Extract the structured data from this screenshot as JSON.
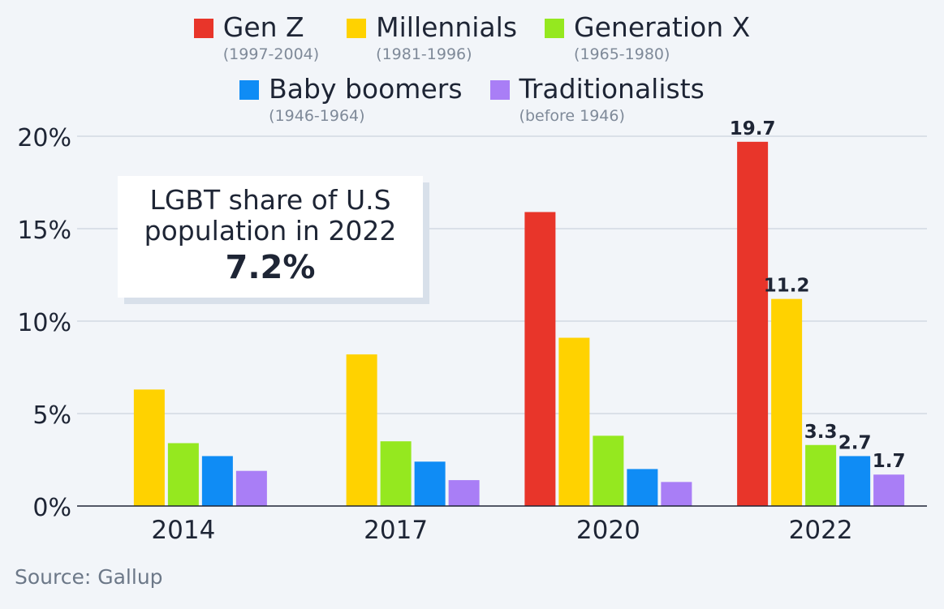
{
  "legend": [
    {
      "name": "Gen Z",
      "range": "(1997-2004)",
      "color": "#e8352a"
    },
    {
      "name": "Millennials",
      "range": "(1981-1996)",
      "color": "#ffd200"
    },
    {
      "name": "Generation X",
      "range": "(1965-1980)",
      "color": "#95e81f"
    },
    {
      "name": "Baby boomers",
      "range": "(1946-1964)",
      "color": "#0f8cf5"
    },
    {
      "name": "Traditionalists",
      "range": "(before 1946)",
      "color": "#a97ef6"
    }
  ],
  "callout": {
    "text_line1": "LGBT share of U.S",
    "text_line2": "population in 2022",
    "value": "7.2%"
  },
  "source": "Source: Gallup",
  "chart_data": {
    "type": "bar",
    "categories": [
      "2014",
      "2017",
      "2020",
      "2022"
    ],
    "series": [
      {
        "name": "Gen Z",
        "values": [
          null,
          null,
          15.9,
          19.7
        ],
        "labels": [
          null,
          null,
          null,
          "19.7"
        ]
      },
      {
        "name": "Millennials",
        "values": [
          6.3,
          8.2,
          9.1,
          11.2
        ],
        "labels": [
          null,
          null,
          null,
          "11.2"
        ]
      },
      {
        "name": "Generation X",
        "values": [
          3.4,
          3.5,
          3.8,
          3.3
        ],
        "labels": [
          null,
          null,
          null,
          "3.3"
        ]
      },
      {
        "name": "Baby boomers",
        "values": [
          2.7,
          2.4,
          2.0,
          2.7
        ],
        "labels": [
          null,
          null,
          null,
          "2.7"
        ]
      },
      {
        "name": "Traditionalists",
        "values": [
          1.9,
          1.4,
          1.3,
          1.7
        ],
        "labels": [
          null,
          null,
          null,
          "1.7"
        ]
      }
    ],
    "ylim": [
      0,
      20
    ],
    "yticks": [
      0,
      5,
      10,
      15,
      20
    ],
    "ytick_labels": [
      "0%",
      "5%",
      "10%",
      "15%",
      "20%"
    ],
    "grid": true,
    "legend_position": "top"
  }
}
